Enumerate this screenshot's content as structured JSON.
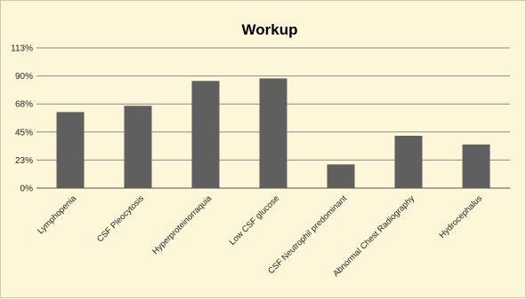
{
  "chart_data": {
    "type": "bar",
    "title": "Workup",
    "categories": [
      "Lymphopenia",
      "CSF Pleocytosis",
      "Hyperproteinorraquia",
      "Low CSF glucose",
      "CSF Neutrophil predominant",
      "Abnormal Chest Radiography",
      "Hydrocephalus"
    ],
    "values": [
      61,
      66,
      86,
      88,
      19,
      42,
      35
    ],
    "yticks": [
      "0%",
      "23%",
      "45%",
      "68%",
      "90%",
      "113%"
    ],
    "ylim": [
      0,
      112.5
    ],
    "grid": true,
    "colors": {
      "bar": "#5f5f5f",
      "grid": "#8a8a8a",
      "background": "#fef6d8"
    }
  }
}
